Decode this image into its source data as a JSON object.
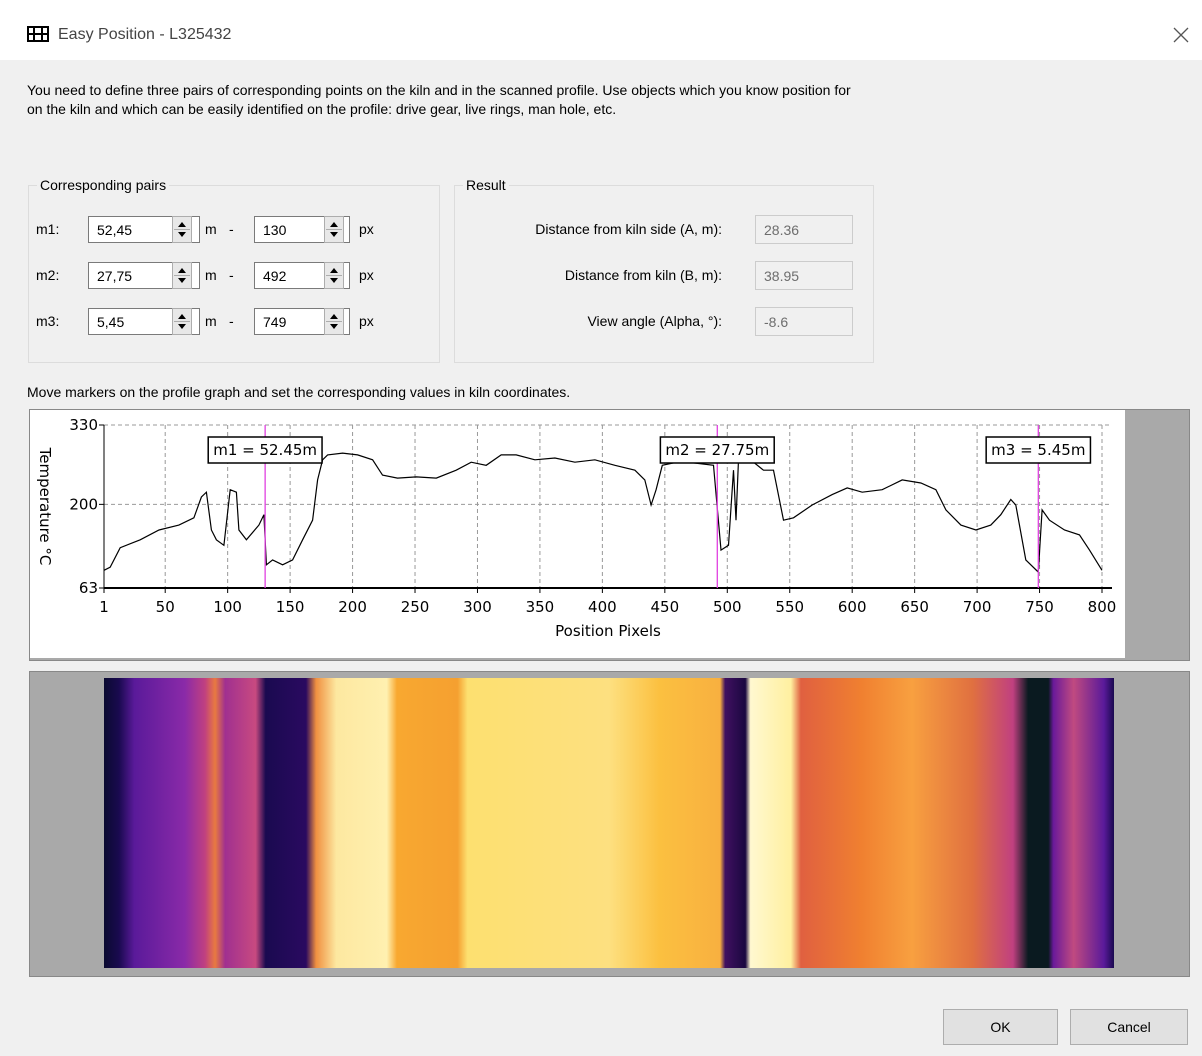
{
  "window": {
    "title": "Easy Position - L325432"
  },
  "instructions": "You need to define three pairs of corresponding points on the kiln and in the scanned profile. Use objects which you know position for on the kiln and which can be easily identified on the profile: drive gear, live rings, man hole, etc.",
  "pairs_group": {
    "title": "Corresponding pairs",
    "rows": [
      {
        "label": "m1:",
        "meters": "52,45",
        "meters_unit": "m",
        "separator": "-",
        "pixels": 130,
        "pixels_unit": "px"
      },
      {
        "label": "m2:",
        "meters": "27,75",
        "meters_unit": "m",
        "separator": "-",
        "pixels": 492,
        "pixels_unit": "px"
      },
      {
        "label": "m3:",
        "meters": "5,45",
        "meters_unit": "m",
        "separator": "-",
        "pixels": 749,
        "pixels_unit": "px"
      }
    ]
  },
  "result_group": {
    "title": "Result",
    "rows": [
      {
        "label": "Distance from kiln side (A, m):",
        "value": "28.36"
      },
      {
        "label": "Distance from kiln (B, m):",
        "value": "38.95"
      },
      {
        "label": "View angle (Alpha, °):",
        "value": "-8.6"
      }
    ]
  },
  "graph_hint": "Move markers on the profile graph and set the corresponding values in kiln coordinates.",
  "chart_data": {
    "type": "line",
    "xlabel": "Position Pixels",
    "ylabel": "Temperature °C",
    "x": [
      1,
      6,
      14,
      30,
      45,
      61,
      73,
      79,
      83,
      87,
      91,
      97,
      102,
      107,
      109,
      115,
      125,
      129,
      131,
      136,
      144,
      152,
      160,
      168,
      172,
      176,
      180,
      192,
      204,
      216,
      224,
      236,
      251,
      267,
      283,
      295,
      307,
      319,
      331,
      346,
      362,
      378,
      394,
      410,
      426,
      434,
      439,
      443,
      448,
      457,
      473,
      489,
      495,
      501,
      505,
      507,
      509,
      521,
      529,
      537,
      545,
      553,
      568,
      584,
      596,
      608,
      624,
      640,
      655,
      667,
      675,
      687,
      699,
      711,
      719,
      727,
      731,
      739,
      749,
      752,
      758,
      770,
      782,
      790,
      800
    ],
    "values": [
      92,
      97,
      129,
      142,
      158,
      166,
      178,
      212,
      220,
      158,
      142,
      133,
      224,
      220,
      158,
      142,
      166,
      183,
      101,
      109,
      101,
      109,
      142,
      174,
      240,
      273,
      281,
      284,
      281,
      273,
      248,
      243,
      245,
      243,
      256,
      269,
      264,
      281,
      281,
      273,
      276,
      269,
      273,
      264,
      256,
      240,
      199,
      224,
      264,
      268,
      268,
      264,
      125,
      133,
      256,
      174,
      273,
      269,
      256,
      256,
      174,
      178,
      199,
      216,
      227,
      220,
      224,
      240,
      235,
      224,
      191,
      166,
      158,
      166,
      183,
      208,
      199,
      109,
      89,
      191,
      174,
      158,
      150,
      125,
      92
    ],
    "color": "#000000",
    "xlim": [
      1,
      808
    ],
    "ylim": [
      63,
      330
    ],
    "xticks": [
      1,
      50,
      100,
      150,
      200,
      250,
      300,
      350,
      400,
      450,
      500,
      550,
      600,
      650,
      700,
      750,
      800
    ],
    "yticks": [
      63,
      200,
      330
    ],
    "grid": true,
    "marker_color": "#e040e0",
    "markers": [
      {
        "x": 130,
        "label": "m1 = 52.45m"
      },
      {
        "x": 492,
        "label": "m2 = 27.75m"
      },
      {
        "x": 749,
        "label": "m3 = 5.45m"
      }
    ]
  },
  "buttons": {
    "ok": "OK",
    "cancel": "Cancel"
  }
}
